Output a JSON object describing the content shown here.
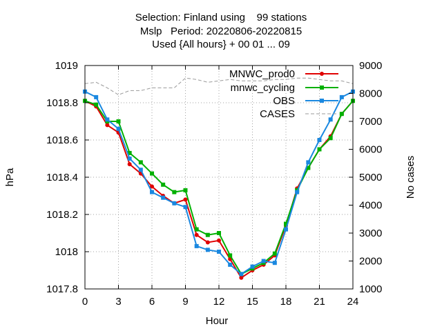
{
  "chart_data": {
    "type": "line",
    "title": [
      "Selection: Finland using    99 stations",
      "Mslp   Period: 20220806-20220815",
      "Used {All hours} + 00 01 ... 09"
    ],
    "xlabel": "Hour",
    "ylabel": "hPa",
    "y2label": "No cases",
    "xlim": [
      0,
      24
    ],
    "ylim": [
      1017.8,
      1019
    ],
    "y2lim": [
      1000,
      9000
    ],
    "xticks": [
      "0",
      "3",
      "6",
      "9",
      "12",
      "15",
      "18",
      "21",
      "24"
    ],
    "yticks": [
      "1017.8",
      "1018",
      "1018.2",
      "1018.4",
      "1018.6",
      "1018.8",
      "1019"
    ],
    "y2ticks": [
      "1000",
      "2000",
      "3000",
      "4000",
      "5000",
      "6000",
      "7000",
      "8000",
      "9000"
    ],
    "grid": true,
    "legend_position": "top-right",
    "x": [
      0,
      1,
      2,
      3,
      4,
      5,
      6,
      7,
      8,
      9,
      10,
      11,
      12,
      13,
      14,
      15,
      16,
      17,
      18,
      19,
      20,
      21,
      22,
      23,
      24
    ],
    "series": [
      {
        "name": "MNWC_prod0",
        "axis": "left",
        "color": "#e00000",
        "marker": "circle",
        "values": [
          1018.81,
          1018.78,
          1018.68,
          1018.64,
          1018.47,
          1018.42,
          1018.35,
          1018.3,
          1018.26,
          1018.28,
          1018.09,
          1018.05,
          1018.06,
          1017.96,
          1017.86,
          1017.9,
          1017.93,
          1017.98,
          1018.14,
          1018.34,
          1018.45,
          1018.55,
          1018.62,
          1018.74,
          1018.81
        ]
      },
      {
        "name": "mnwc_cycling",
        "axis": "left",
        "color": "#00b000",
        "marker": "square",
        "values": [
          1018.81,
          1018.79,
          1018.7,
          1018.7,
          1018.53,
          1018.48,
          1018.42,
          1018.36,
          1018.32,
          1018.33,
          1018.12,
          1018.09,
          1018.1,
          1017.98,
          1017.88,
          1017.91,
          1017.94,
          1017.99,
          1018.15,
          1018.33,
          1018.45,
          1018.55,
          1018.61,
          1018.74,
          1018.81
        ]
      },
      {
        "name": "OBS",
        "axis": "left",
        "color": "#1a88e0",
        "marker": "square",
        "values": [
          1018.86,
          1018.83,
          1018.71,
          1018.66,
          1018.5,
          1018.44,
          1018.32,
          1018.29,
          1018.26,
          1018.24,
          1018.03,
          1018.01,
          1018.0,
          1017.93,
          1017.88,
          1017.92,
          1017.95,
          1017.94,
          1018.12,
          1018.32,
          1018.48,
          1018.6,
          1018.71,
          1018.83,
          1018.86
        ]
      },
      {
        "name": "CASES",
        "axis": "right",
        "color": "#999999",
        "style": "dashed",
        "values": [
          8350,
          8400,
          8200,
          7950,
          8100,
          8100,
          8200,
          8200,
          8200,
          8550,
          8500,
          8400,
          8450,
          8500,
          8450,
          8450,
          8450,
          8500,
          8500,
          8550,
          8550,
          8500,
          8450,
          8450,
          8350
        ]
      }
    ]
  }
}
